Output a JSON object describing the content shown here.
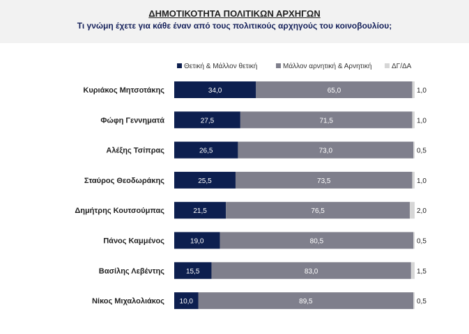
{
  "header": {
    "title": "ΔΗΜΟΤΙΚΟΤΗΤΑ ΠΟΛΙΤΙΚΩΝ ΑΡΧΗΓΩΝ",
    "subtitle": "Τι γνώμη έχετε για κάθε έναν από τους πολιτικούς αρχηγούς του κοινοβουλίου;"
  },
  "chart_data": {
    "type": "bar",
    "orientation": "horizontal",
    "stacked": true,
    "categories": [
      "Κυριάκος Μητσοτάκης",
      "Φώφη Γεννηματά",
      "Αλέξης Τσίπρας",
      "Σταύρος Θεοδωράκης",
      "Δημήτρης Κουτσούμπας",
      "Πάνος Καμμένος",
      "Βασίλης Λεβέντης",
      "Νίκος Μιχαλολιάκος"
    ],
    "series": [
      {
        "name": "Θετική & Μάλλον θετική",
        "color": "#0d1f4f",
        "values": [
          34.0,
          27.5,
          26.5,
          25.5,
          21.5,
          19.0,
          15.5,
          10.0
        ],
        "labels": [
          "34,0",
          "27,5",
          "26,5",
          "25,5",
          "21,5",
          "19,0",
          "15,5",
          "10,0"
        ]
      },
      {
        "name": "Μάλλον αρνητική & Αρνητική",
        "color": "#7f7f8c",
        "values": [
          65.0,
          71.5,
          73.0,
          73.5,
          76.5,
          80.5,
          83.0,
          89.5
        ],
        "labels": [
          "65,0",
          "71,5",
          "73,0",
          "73,5",
          "76,5",
          "80,5",
          "83,0",
          "89,5"
        ]
      },
      {
        "name": "ΔΓ/ΔΑ",
        "color": "#d6d6d6",
        "values": [
          1.0,
          1.0,
          0.5,
          1.0,
          2.0,
          0.5,
          1.5,
          0.5
        ],
        "labels": [
          "1,0",
          "1,0",
          "0,5",
          "1,0",
          "2,0",
          "0,5",
          "1,5",
          "0,5"
        ]
      }
    ],
    "xlim": [
      0,
      100
    ],
    "grid": false,
    "legend_position": "top"
  }
}
